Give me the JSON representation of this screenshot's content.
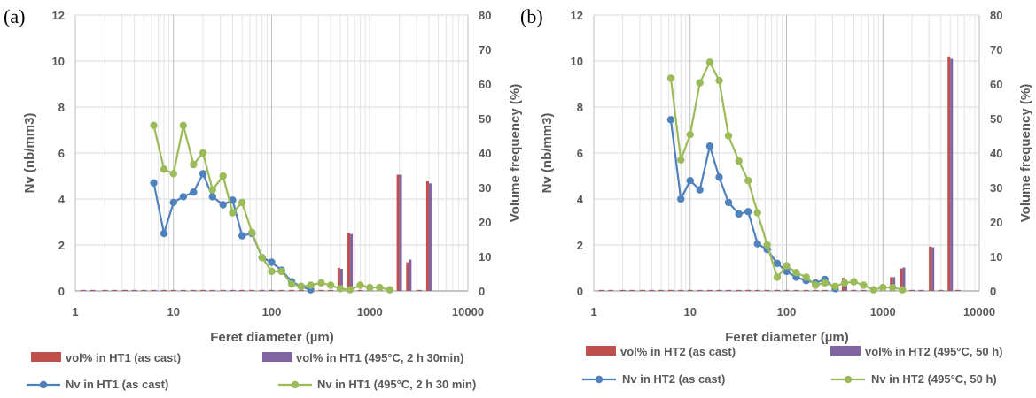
{
  "chart_data": [
    {
      "panel_label": "(a)",
      "type": "bar+line",
      "xlabel": "Feret diameter (µm)",
      "ylabel_left": "Nv (nb/mm3)",
      "ylabel_right": "Volume frequency (%)",
      "x_scale": "log",
      "xlim": [
        1,
        10000
      ],
      "x_ticks": [
        "1",
        "10",
        "100",
        "1000",
        "10000"
      ],
      "x_tick_values": [
        1,
        10,
        100,
        1000,
        10000
      ],
      "ylim_left": [
        0,
        12
      ],
      "y_ticks_left": [
        "0",
        "2",
        "4",
        "6",
        "8",
        "10",
        "12"
      ],
      "y_tick_values_left": [
        0,
        2,
        4,
        6,
        8,
        10,
        12
      ],
      "ylim_right": [
        0,
        80
      ],
      "y_ticks_right": [
        "0",
        "10",
        "20",
        "30",
        "40",
        "50",
        "60",
        "70",
        "80"
      ],
      "y_tick_values_right": [
        0,
        10,
        20,
        30,
        40,
        50,
        60,
        70,
        80
      ],
      "grid": true,
      "legend_position": "bottom",
      "bar_series": [
        {
          "name": "vol% in HT1 (as cast)",
          "color": "#c0504d",
          "x": [
            1.2,
            1.5,
            2,
            2.5,
            3.2,
            4,
            5,
            6.3,
            8,
            10,
            12.6,
            16,
            20,
            25,
            32,
            40,
            50,
            63,
            80,
            100,
            126,
            160,
            200,
            250,
            320,
            400,
            500,
            630,
            800,
            1000,
            1260,
            1600,
            2000,
            2500,
            3200,
            4000
          ],
          "values": [
            0.3,
            0.3,
            0.3,
            0.3,
            0.3,
            0.3,
            0.3,
            0.3,
            0.3,
            0.3,
            0.3,
            0.3,
            0.3,
            0.3,
            0.3,
            0.3,
            0.3,
            0.3,
            0.3,
            0.3,
            0.3,
            0.3,
            0.3,
            0.3,
            0.3,
            0.3,
            6.7,
            16.8,
            0.3,
            0.3,
            0.3,
            0.3,
            33.7,
            8.3,
            0.3,
            31.8
          ]
        },
        {
          "name": "vol% in HT1 (495°C, 2 h 30min)",
          "color": "#8064a2",
          "x": [
            1.2,
            1.5,
            2,
            2.5,
            3.2,
            4,
            5,
            6.3,
            8,
            10,
            12.6,
            16,
            20,
            25,
            32,
            40,
            50,
            63,
            80,
            100,
            126,
            160,
            200,
            250,
            320,
            400,
            500,
            630,
            800,
            1000,
            1260,
            1600,
            2000,
            2500,
            3200,
            4000
          ],
          "values": [
            0.3,
            0.3,
            0.3,
            0.3,
            0.3,
            0.3,
            0.3,
            0.3,
            0.3,
            0.3,
            0.3,
            0.3,
            0.3,
            0.3,
            0.3,
            0.3,
            0.3,
            0.3,
            0.3,
            0.3,
            0.3,
            0.3,
            0.3,
            0.3,
            0.3,
            0.3,
            6.4,
            16.5,
            0.3,
            0.3,
            0.3,
            0.3,
            33.7,
            9.1,
            0.3,
            31.2
          ]
        }
      ],
      "line_series": [
        {
          "name": "Nv in HT1 (as cast)",
          "color": "#4f81bd",
          "x": [
            6.3,
            8,
            10,
            12.6,
            16,
            20,
            25,
            32,
            40,
            50,
            63,
            80,
            100,
            126,
            160,
            200,
            250
          ],
          "y": [
            4.7,
            2.5,
            3.85,
            4.1,
            4.3,
            5.1,
            4.1,
            3.75,
            3.95,
            2.4,
            2.5,
            1.45,
            1.25,
            0.9,
            0.4,
            0.2,
            0.05
          ]
        },
        {
          "name": "Nv in HT1 (495°C, 2 h 30 min)",
          "color": "#9bbb59",
          "x": [
            6.3,
            8,
            10,
            12.6,
            16,
            20,
            25,
            32,
            40,
            50,
            63,
            80,
            100,
            126,
            160,
            200,
            250,
            320,
            400,
            500,
            630,
            800,
            1000,
            1260,
            1600
          ],
          "y": [
            7.2,
            5.3,
            5.1,
            7.2,
            5.5,
            6.0,
            4.4,
            5.0,
            3.4,
            3.85,
            2.55,
            1.45,
            0.85,
            0.85,
            0.3,
            0.2,
            0.25,
            0.35,
            0.25,
            0.1,
            0.05,
            0.25,
            0.15,
            0.15,
            0.05
          ]
        }
      ]
    },
    {
      "panel_label": "(b)",
      "type": "bar+line",
      "xlabel": "Feret diameter (µm)",
      "ylabel_left": "Nv (nb/mm3)",
      "ylabel_right": "Volume frequency (%)",
      "x_scale": "log",
      "xlim": [
        1,
        10000
      ],
      "x_ticks": [
        "1",
        "10",
        "100",
        "1000",
        "10000"
      ],
      "x_tick_values": [
        1,
        10,
        100,
        1000,
        10000
      ],
      "ylim_left": [
        0,
        12
      ],
      "y_ticks_left": [
        "0",
        "2",
        "4",
        "6",
        "8",
        "10",
        "12"
      ],
      "y_tick_values_left": [
        0,
        2,
        4,
        6,
        8,
        10,
        12
      ],
      "ylim_right": [
        0,
        80
      ],
      "y_ticks_right": [
        "0",
        "10",
        "20",
        "30",
        "40",
        "50",
        "60",
        "70",
        "80"
      ],
      "y_tick_values_right": [
        0,
        10,
        20,
        30,
        40,
        50,
        60,
        70,
        80
      ],
      "grid": true,
      "legend_position": "bottom",
      "bar_series": [
        {
          "name": "vol% in HT2 (as cast)",
          "color": "#c0504d",
          "x": [
            1.2,
            1.5,
            2,
            2.5,
            3.2,
            4,
            5,
            6.3,
            8,
            10,
            12.6,
            16,
            20,
            25,
            32,
            40,
            50,
            63,
            80,
            100,
            126,
            160,
            200,
            250,
            320,
            400,
            500,
            630,
            800,
            1000,
            1260,
            1600,
            2000,
            2500,
            3200,
            4000,
            5000,
            6000
          ],
          "values": [
            0.3,
            0.3,
            0.3,
            0.3,
            0.3,
            0.3,
            0.3,
            0.3,
            0.3,
            0.3,
            0.3,
            0.3,
            0.3,
            0.3,
            0.3,
            0.3,
            0.3,
            0.3,
            0.3,
            0.3,
            0.3,
            0.3,
            0.3,
            0.3,
            0.3,
            3.8,
            0.3,
            0.3,
            0.3,
            0.3,
            4.0,
            6.5,
            0.3,
            0.3,
            12.9,
            0.3,
            68.0,
            0.3
          ]
        },
        {
          "name": "vol% in HT2 (495°C, 50 h)",
          "color": "#8064a2",
          "x": [
            1.2,
            1.5,
            2,
            2.5,
            3.2,
            4,
            5,
            6.3,
            8,
            10,
            12.6,
            16,
            20,
            25,
            32,
            40,
            50,
            63,
            80,
            100,
            126,
            160,
            200,
            250,
            320,
            400,
            500,
            630,
            800,
            1000,
            1260,
            1600,
            2000,
            2500,
            3200,
            4000,
            5000,
            6000
          ],
          "values": [
            0.3,
            0.3,
            0.3,
            0.3,
            0.3,
            0.3,
            0.3,
            0.3,
            0.3,
            0.3,
            0.3,
            0.3,
            0.3,
            0.3,
            0.3,
            0.3,
            0.3,
            0.3,
            0.3,
            0.3,
            0.3,
            0.3,
            0.3,
            0.3,
            0.3,
            3.2,
            0.3,
            0.3,
            0.3,
            0.3,
            4.0,
            6.8,
            0.3,
            0.3,
            12.7,
            0.3,
            67.3,
            0.3
          ]
        }
      ],
      "line_series": [
        {
          "name": "Nv in HT2 (as cast)",
          "color": "#4f81bd",
          "x": [
            6.3,
            8,
            10,
            12.6,
            16,
            20,
            25,
            32,
            40,
            50,
            63,
            80,
            100,
            126,
            160,
            200,
            250,
            320
          ],
          "y": [
            7.45,
            4.0,
            4.8,
            4.4,
            6.3,
            4.95,
            3.85,
            3.35,
            3.45,
            2.05,
            1.8,
            1.2,
            0.85,
            0.6,
            0.45,
            0.35,
            0.5,
            0.1
          ]
        },
        {
          "name": "Nv in HT2 (495°C, 50 h)",
          "color": "#9bbb59",
          "x": [
            6.3,
            8,
            10,
            12.6,
            16,
            20,
            25,
            32,
            40,
            50,
            63,
            80,
            100,
            126,
            160,
            200,
            250,
            320,
            400,
            500,
            630,
            800,
            1000,
            1260,
            1600
          ],
          "y": [
            9.25,
            5.7,
            6.8,
            9.05,
            9.95,
            9.15,
            6.75,
            5.65,
            4.8,
            3.4,
            2.0,
            0.6,
            1.1,
            0.8,
            0.6,
            0.25,
            0.35,
            0.2,
            0.35,
            0.4,
            0.25,
            0.05,
            0.15,
            0.15,
            0.05
          ]
        }
      ]
    }
  ]
}
